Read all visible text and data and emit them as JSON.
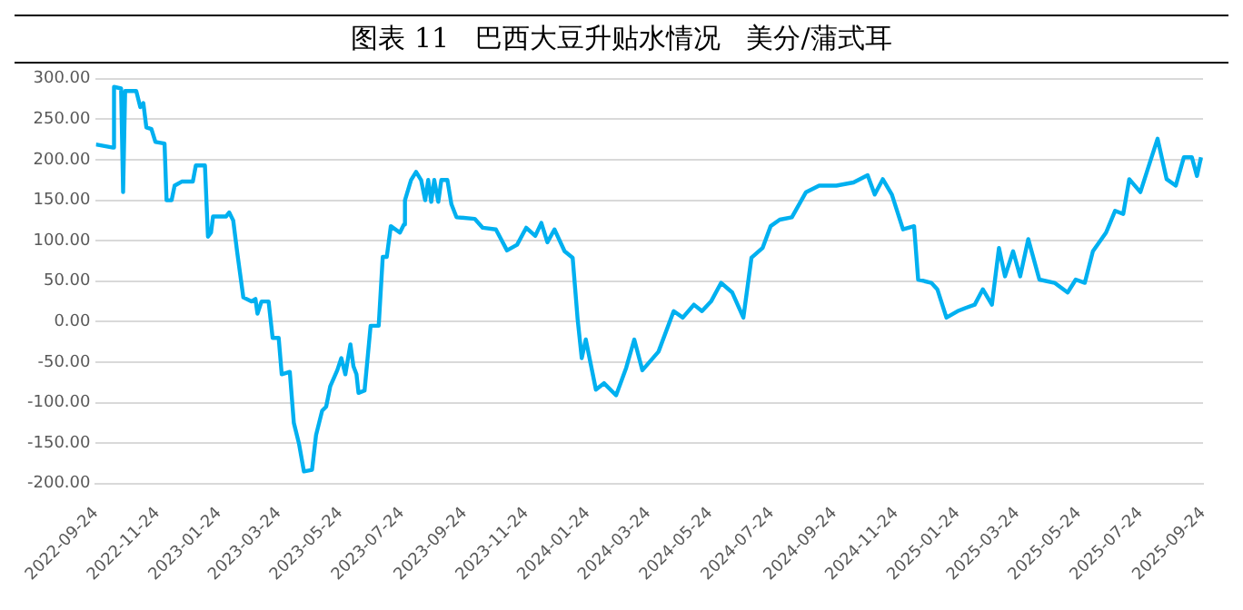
{
  "chart_data": {
    "type": "line",
    "title": "图表 11   巴西大豆升贴水情况   美分/蒲式耳",
    "x": [
      "2022-09-24",
      "2022-10-11",
      "2022-10-12",
      "2022-10-19",
      "2022-10-21",
      "2022-10-23",
      "2022-11-03",
      "2022-11-07",
      "2022-11-10",
      "2022-11-13",
      "2022-11-18",
      "2022-11-22",
      "2022-12-01",
      "2022-12-03",
      "2022-12-08",
      "2022-12-11",
      "2022-12-18",
      "2022-12-29",
      "2023-01-01",
      "2023-01-10",
      "2023-01-13",
      "2023-01-16",
      "2023-01-18",
      "2023-01-31",
      "2023-02-03",
      "2023-02-07",
      "2023-02-11",
      "2023-02-17",
      "2023-02-25",
      "2023-03-01",
      "2023-03-03",
      "2023-03-07",
      "2023-03-14",
      "2023-03-18",
      "2023-03-24",
      "2023-03-27",
      "2023-04-04",
      "2023-04-08",
      "2023-04-13",
      "2023-04-18",
      "2023-04-26",
      "2023-04-30",
      "2023-05-06",
      "2023-05-10",
      "2023-05-14",
      "2023-05-21",
      "2023-05-25",
      "2023-05-29",
      "2023-06-03",
      "2023-06-06",
      "2023-06-09",
      "2023-06-11",
      "2023-06-17",
      "2023-06-23",
      "2023-07-01",
      "2023-07-05",
      "2023-07-09",
      "2023-07-13",
      "2023-07-22",
      "2023-07-26",
      "2023-07-27",
      "2023-08-02",
      "2023-08-07",
      "2023-08-12",
      "2023-08-16",
      "2023-08-19",
      "2023-08-22",
      "2023-08-25",
      "2023-08-29",
      "2023-09-01",
      "2023-09-07",
      "2023-09-11",
      "2023-09-16",
      "2023-10-04",
      "2023-10-12",
      "2023-10-25",
      "2023-11-05",
      "2023-11-15",
      "2023-11-24",
      "2023-12-03",
      "2023-12-09",
      "2023-12-15",
      "2023-12-22",
      "2024-01-01",
      "2024-01-09",
      "2024-01-14",
      "2024-01-18",
      "2024-01-22",
      "2024-02-01",
      "2024-02-09",
      "2024-02-21",
      "2024-03-02",
      "2024-03-10",
      "2024-03-18",
      "2024-04-03",
      "2024-04-18",
      "2024-04-27",
      "2024-05-08",
      "2024-05-16",
      "2024-05-25",
      "2024-06-04",
      "2024-06-15",
      "2024-06-26",
      "2024-07-04",
      "2024-07-15",
      "2024-07-23",
      "2024-08-01",
      "2024-08-13",
      "2024-08-27",
      "2024-09-09",
      "2024-09-26",
      "2024-10-13",
      "2024-10-27",
      "2024-11-03",
      "2024-11-11",
      "2024-11-20",
      "2024-12-01",
      "2024-12-12",
      "2024-12-16",
      "2024-12-29",
      "2025-01-04",
      "2025-01-13",
      "2025-01-24",
      "2025-02-01",
      "2025-02-10",
      "2025-02-18",
      "2025-02-27",
      "2025-03-06",
      "2025-03-12",
      "2025-03-20",
      "2025-03-27",
      "2025-04-04",
      "2025-04-15",
      "2025-04-30",
      "2025-05-13",
      "2025-05-21",
      "2025-05-30",
      "2025-06-07",
      "2025-06-20",
      "2025-06-29",
      "2025-07-07",
      "2025-07-13",
      "2025-07-24",
      "2025-08-02",
      "2025-08-10",
      "2025-08-19",
      "2025-08-28",
      "2025-09-05",
      "2025-09-13",
      "2025-09-18",
      "2025-09-22"
    ],
    "series": [
      {
        "color": "#00b0f0",
        "values": [
          219,
          215,
          290,
          288,
          160,
          285,
          285,
          265,
          270,
          240,
          238,
          222,
          220,
          150,
          150,
          168,
          173,
          173,
          193,
          193,
          105,
          110,
          130,
          130,
          135,
          125,
          85,
          30,
          25,
          28,
          10,
          25,
          25,
          -20,
          -20,
          -65,
          -62,
          -125,
          -150,
          -185,
          -183,
          -140,
          -110,
          -105,
          -80,
          -60,
          -45,
          -65,
          -28,
          -55,
          -65,
          -88,
          -85,
          -5,
          -5,
          80,
          80,
          118,
          110,
          120,
          150,
          175,
          185,
          175,
          150,
          175,
          148,
          175,
          148,
          175,
          175,
          145,
          129,
          127,
          116,
          114,
          88,
          95,
          116,
          106,
          122,
          98,
          114,
          87,
          79,
          2,
          -45,
          -22,
          -84,
          -76,
          -91,
          -57,
          -22,
          -60,
          -37,
          13,
          5,
          21,
          13,
          25,
          48,
          36,
          5,
          79,
          91,
          118,
          126,
          129,
          160,
          168,
          168,
          172,
          181,
          157,
          176,
          157,
          114,
          118,
          52,
          48,
          40,
          5,
          13,
          17,
          21,
          40,
          21,
          91,
          56,
          87,
          56,
          102,
          52,
          48,
          36,
          52,
          48,
          87,
          110,
          137,
          133,
          176,
          160,
          195,
          226,
          176,
          168,
          203,
          203,
          180,
          203
        ]
      }
    ],
    "xlim": [
      "2022-09-24",
      "2025-09-24"
    ],
    "xticks": [
      "2022-09-24",
      "2022-11-24",
      "2023-01-24",
      "2023-03-24",
      "2023-05-24",
      "2023-07-24",
      "2023-09-24",
      "2023-11-24",
      "2024-01-24",
      "2024-03-24",
      "2024-05-24",
      "2024-07-24",
      "2024-09-24",
      "2024-11-24",
      "2025-01-24",
      "2025-03-24",
      "2025-05-24",
      "2025-07-24",
      "2025-09-24"
    ],
    "ylim": [
      -200,
      300
    ],
    "yticks": [
      {
        "value": -200,
        "label": "-200.00"
      },
      {
        "value": -150,
        "label": "-150.00"
      },
      {
        "value": -100,
        "label": "-100.00"
      },
      {
        "value": -50,
        "label": "-50.00"
      },
      {
        "value": 0,
        "label": "0.00"
      },
      {
        "value": 50,
        "label": "50.00"
      },
      {
        "value": 100,
        "label": "100.00"
      },
      {
        "value": 150,
        "label": "150.00"
      },
      {
        "value": 200,
        "label": "200.00"
      },
      {
        "value": 250,
        "label": "250.00"
      },
      {
        "value": 300,
        "label": "300.00"
      }
    ],
    "grid": "y",
    "legend": false,
    "marker": "none",
    "line_style": "solid"
  }
}
